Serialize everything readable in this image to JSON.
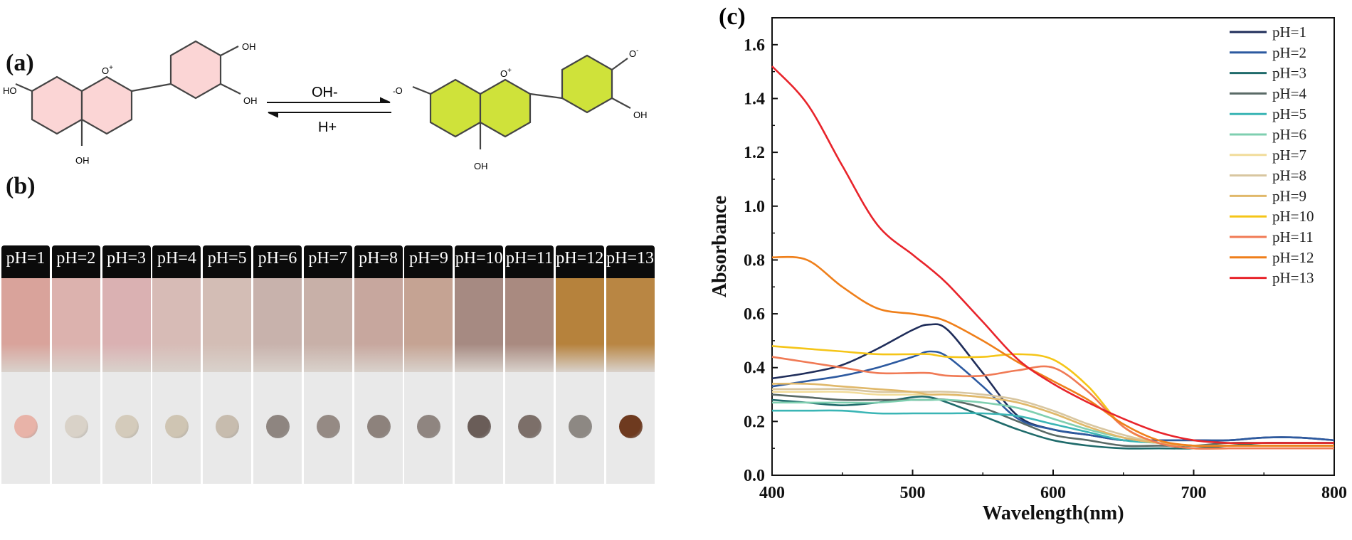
{
  "panel_a": {
    "label": "(a)",
    "left_molecule": {
      "oh_top": "OH",
      "oh_right": "OH",
      "ho_left": "HO",
      "oh_bottom": "OH",
      "o_plus": "O",
      "charge": "+"
    },
    "right_molecule": {
      "o_minus_top": "O",
      "oh_right": "OH",
      "o_minus_left": "O",
      "oh_bottom": "OH",
      "o_plus": "O",
      "charge": "+"
    },
    "forward_reagent": "OH-",
    "reverse_reagent": "H+",
    "colors": {
      "left_ring_fill": "#fbd5d5",
      "right_ring_fill": "#cfe23a"
    }
  },
  "panel_b": {
    "label": "(b)",
    "vials": [
      {
        "label": "pH=1",
        "liquid": "#d9a39b",
        "spot": "#e8b3a8"
      },
      {
        "label": "pH=2",
        "liquid": "#dcb2ae",
        "spot": "#d9d2c8"
      },
      {
        "label": "pH=3",
        "liquid": "#dab1b2",
        "spot": "#d4cbbb"
      },
      {
        "label": "pH=4",
        "liquid": "#d7bbb6",
        "spot": "#cfc5b3"
      },
      {
        "label": "pH=5",
        "liquid": "#d3bdb5",
        "spot": "#c7bcae"
      },
      {
        "label": "pH=6",
        "liquid": "#c8b2ac",
        "spot": "#8e8580"
      },
      {
        "label": "pH=7",
        "liquid": "#c8b0a8",
        "spot": "#958a84"
      },
      {
        "label": "pH=8",
        "liquid": "#c7a79e",
        "spot": "#8d827c"
      },
      {
        "label": "pH=9",
        "liquid": "#c5a393",
        "spot": "#8f8580"
      },
      {
        "label": "pH=10",
        "liquid": "#a68a82",
        "spot": "#6a5d58"
      },
      {
        "label": "pH=11",
        "liquid": "#a98a80",
        "spot": "#7c6f69"
      },
      {
        "label": "pH=12",
        "liquid": "#b6823c",
        "spot": "#8d8883"
      },
      {
        "label": "pH=13",
        "liquid": "#b98643",
        "spot": "#6e3a1f"
      }
    ]
  },
  "chart_data": {
    "type": "line",
    "panel_label": "(c)",
    "xlabel": "Wavelength(nm)",
    "ylabel": "Absorbance",
    "xlim": [
      400,
      800
    ],
    "ylim": [
      0.0,
      1.7
    ],
    "xticks": [
      "400",
      "500",
      "600",
      "700",
      "800"
    ],
    "yticks": [
      "0.0",
      "0.2",
      "0.4",
      "0.6",
      "0.8",
      "1.0",
      "1.2",
      "1.4",
      "1.6"
    ],
    "legend_position": "top-right",
    "x": [
      400,
      425,
      450,
      475,
      500,
      512,
      525,
      550,
      575,
      600,
      625,
      650,
      675,
      700,
      725,
      750,
      775,
      800
    ],
    "series": [
      {
        "name": "pH=1",
        "color": "#1f2d5a",
        "values": [
          0.36,
          0.38,
          0.41,
          0.47,
          0.54,
          0.56,
          0.54,
          0.38,
          0.22,
          0.17,
          0.15,
          0.13,
          0.13,
          0.13,
          0.13,
          0.14,
          0.14,
          0.13
        ]
      },
      {
        "name": "pH=2",
        "color": "#2d5aa0",
        "values": [
          0.33,
          0.35,
          0.37,
          0.4,
          0.44,
          0.46,
          0.44,
          0.33,
          0.21,
          0.17,
          0.15,
          0.13,
          0.13,
          0.13,
          0.13,
          0.14,
          0.14,
          0.13
        ]
      },
      {
        "name": "pH=3",
        "color": "#1f6b6b",
        "values": [
          0.28,
          0.27,
          0.26,
          0.27,
          0.29,
          0.29,
          0.27,
          0.22,
          0.17,
          0.13,
          0.11,
          0.1,
          0.1,
          0.1,
          0.11,
          0.12,
          0.12,
          0.12
        ]
      },
      {
        "name": "pH=4",
        "color": "#5a6a66",
        "values": [
          0.3,
          0.29,
          0.28,
          0.28,
          0.28,
          0.28,
          0.28,
          0.25,
          0.2,
          0.15,
          0.13,
          0.11,
          0.11,
          0.11,
          0.12,
          0.12,
          0.12,
          0.12
        ]
      },
      {
        "name": "pH=5",
        "color": "#3ab5b5",
        "values": [
          0.24,
          0.24,
          0.24,
          0.23,
          0.23,
          0.23,
          0.23,
          0.23,
          0.22,
          0.19,
          0.16,
          0.13,
          0.12,
          0.11,
          0.11,
          0.11,
          0.11,
          0.11
        ]
      },
      {
        "name": "pH=6",
        "color": "#7fcfb0",
        "values": [
          0.27,
          0.27,
          0.27,
          0.27,
          0.28,
          0.28,
          0.28,
          0.27,
          0.25,
          0.21,
          0.17,
          0.14,
          0.12,
          0.11,
          0.11,
          0.11,
          0.11,
          0.11
        ]
      },
      {
        "name": "pH=7",
        "color": "#f1dc9a",
        "values": [
          0.31,
          0.31,
          0.31,
          0.3,
          0.3,
          0.3,
          0.3,
          0.29,
          0.27,
          0.23,
          0.18,
          0.14,
          0.12,
          0.11,
          0.11,
          0.11,
          0.11,
          0.11
        ]
      },
      {
        "name": "pH=8",
        "color": "#d8c6a0",
        "values": [
          0.32,
          0.32,
          0.32,
          0.31,
          0.31,
          0.31,
          0.31,
          0.3,
          0.28,
          0.24,
          0.19,
          0.15,
          0.12,
          0.11,
          0.11,
          0.11,
          0.11,
          0.11
        ]
      },
      {
        "name": "pH=9",
        "color": "#e0b86a",
        "values": [
          0.34,
          0.34,
          0.33,
          0.32,
          0.31,
          0.3,
          0.3,
          0.29,
          0.27,
          0.23,
          0.18,
          0.14,
          0.12,
          0.11,
          0.11,
          0.11,
          0.11,
          0.11
        ]
      },
      {
        "name": "pH=10",
        "color": "#f5c518",
        "values": [
          0.48,
          0.47,
          0.46,
          0.45,
          0.45,
          0.45,
          0.44,
          0.44,
          0.45,
          0.43,
          0.33,
          0.18,
          0.12,
          0.1,
          0.1,
          0.1,
          0.1,
          0.1
        ]
      },
      {
        "name": "pH=11",
        "color": "#f07a55",
        "values": [
          0.44,
          0.42,
          0.4,
          0.38,
          0.38,
          0.38,
          0.37,
          0.37,
          0.39,
          0.4,
          0.31,
          0.18,
          0.12,
          0.1,
          0.1,
          0.1,
          0.1,
          0.1
        ]
      },
      {
        "name": "pH=12",
        "color": "#ef7f1a",
        "values": [
          0.81,
          0.8,
          0.7,
          0.62,
          0.6,
          0.59,
          0.57,
          0.5,
          0.42,
          0.35,
          0.28,
          0.19,
          0.13,
          0.11,
          0.11,
          0.11,
          0.11,
          0.11
        ]
      },
      {
        "name": "pH=13",
        "color": "#e8242b",
        "values": [
          1.52,
          1.38,
          1.15,
          0.93,
          0.82,
          0.77,
          0.71,
          0.57,
          0.43,
          0.34,
          0.27,
          0.21,
          0.16,
          0.13,
          0.12,
          0.12,
          0.12,
          0.12
        ]
      }
    ]
  }
}
